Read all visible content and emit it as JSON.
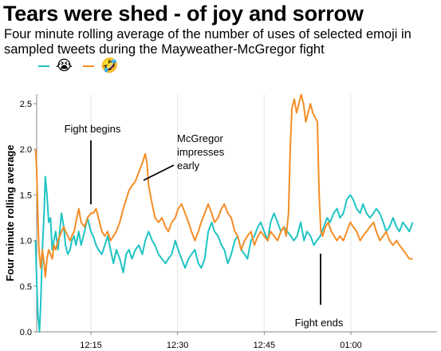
{
  "title": "Tears were shed - of joy and sorrow",
  "subtitle": "Four minute rolling average of the number of uses of selected emoji in sampled tweets during the Mayweather-McGregor fight",
  "colors": {
    "teal": "#1fc4c4",
    "orange": "#f58d25"
  },
  "legend": [
    {
      "emoji": "😭",
      "color": "#1fc4c4"
    },
    {
      "emoji": "🤣",
      "color": "#f58d25"
    }
  ],
  "chart_data": {
    "type": "line",
    "ylabel": "Four minute rolling average",
    "xlabel": "",
    "xlim_minutes_past_midnight": [
      723,
      1511
    ],
    "ylim": [
      0,
      2.6
    ],
    "x_ticks": [
      {
        "label": "12:15",
        "minutes": 735
      },
      {
        "label": "12:30",
        "minutes": 750
      },
      {
        "label": "12:45",
        "minutes": 765
      },
      {
        "label": "01:00",
        "minutes": 780
      }
    ],
    "y_ticks": [
      "0.0",
      "0.5",
      "1.0",
      "1.5",
      "2.0",
      "2.5"
    ],
    "grid": "vertical",
    "series": [
      {
        "emoji": "😭",
        "color": "#1fc4c4",
        "points": [
          [
            725.4,
            1.0
          ],
          [
            725.6,
            0.6
          ],
          [
            725.8,
            0.2
          ],
          [
            726.1,
            0.0
          ],
          [
            726.3,
            0.3
          ],
          [
            726.6,
            0.9
          ],
          [
            726.9,
            1.3
          ],
          [
            727.1,
            1.7
          ],
          [
            727.4,
            1.5
          ],
          [
            727.7,
            1.2
          ],
          [
            728.0,
            1.25
          ],
          [
            728.3,
            0.9
          ],
          [
            728.6,
            1.0
          ],
          [
            728.9,
            1.1
          ],
          [
            729.3,
            0.9
          ],
          [
            729.6,
            1.1
          ],
          [
            729.9,
            1.3
          ],
          [
            730.3,
            1.15
          ],
          [
            730.6,
            0.95
          ],
          [
            731.0,
            0.85
          ],
          [
            731.4,
            0.9
          ],
          [
            731.7,
            1.0
          ],
          [
            732.1,
            1.05
          ],
          [
            732.4,
            0.95
          ],
          [
            732.9,
            1.1
          ],
          [
            733.3,
            0.95
          ],
          [
            733.9,
            1.1
          ],
          [
            734.4,
            1.25
          ],
          [
            735.0,
            1.1
          ],
          [
            735.4,
            1.05
          ],
          [
            735.9,
            0.95
          ],
          [
            736.3,
            0.9
          ],
          [
            736.9,
            0.85
          ],
          [
            737.4,
            0.95
          ],
          [
            737.9,
            1.05
          ],
          [
            738.4,
            0.9
          ],
          [
            738.9,
            0.75
          ],
          [
            739.4,
            0.9
          ],
          [
            740.0,
            0.8
          ],
          [
            740.6,
            0.65
          ],
          [
            741.1,
            0.85
          ],
          [
            741.6,
            0.9
          ],
          [
            742.1,
            0.8
          ],
          [
            742.7,
            0.9
          ],
          [
            743.3,
            0.95
          ],
          [
            743.9,
            0.85
          ],
          [
            744.4,
            1.0
          ],
          [
            745.0,
            1.1
          ],
          [
            745.6,
            1.0
          ],
          [
            746.1,
            0.95
          ],
          [
            746.7,
            0.85
          ],
          [
            747.3,
            0.8
          ],
          [
            747.9,
            0.75
          ],
          [
            748.4,
            0.8
          ],
          [
            749.0,
            0.85
          ],
          [
            749.6,
            1.0
          ],
          [
            750.1,
            0.9
          ],
          [
            750.7,
            0.8
          ],
          [
            751.3,
            0.7
          ],
          [
            751.9,
            0.8
          ],
          [
            752.4,
            0.85
          ],
          [
            753.0,
            0.9
          ],
          [
            753.6,
            0.75
          ],
          [
            754.1,
            0.7
          ],
          [
            754.7,
            0.8
          ],
          [
            755.3,
            1.1
          ],
          [
            755.9,
            1.2
          ],
          [
            756.4,
            1.1
          ],
          [
            757.0,
            1.05
          ],
          [
            757.6,
            0.95
          ],
          [
            758.1,
            0.9
          ],
          [
            758.7,
            0.75
          ],
          [
            759.3,
            0.85
          ],
          [
            759.9,
            1.0
          ],
          [
            760.4,
            1.05
          ],
          [
            761.0,
            0.9
          ],
          [
            761.6,
            0.85
          ],
          [
            762.1,
            0.8
          ],
          [
            762.7,
            1.0
          ],
          [
            763.3,
            1.05
          ],
          [
            763.9,
            1.15
          ],
          [
            764.4,
            1.2
          ],
          [
            765.0,
            1.1
          ],
          [
            765.6,
            1.0
          ],
          [
            766.1,
            1.2
          ],
          [
            766.7,
            1.3
          ],
          [
            767.3,
            1.2
          ],
          [
            767.9,
            1.1
          ],
          [
            768.4,
            1.15
          ],
          [
            769.0,
            1.1
          ],
          [
            769.6,
            1.05
          ],
          [
            770.1,
            1.0
          ],
          [
            770.7,
            1.05
          ],
          [
            771.3,
            1.2
          ],
          [
            771.9,
            1.0
          ],
          [
            772.4,
            1.1
          ],
          [
            773.0,
            1.05
          ],
          [
            773.6,
            0.95
          ],
          [
            774.1,
            1.0
          ],
          [
            774.7,
            1.05
          ],
          [
            775.3,
            1.15
          ],
          [
            775.9,
            1.25
          ],
          [
            776.4,
            1.2
          ],
          [
            777.0,
            1.3
          ],
          [
            777.6,
            1.35
          ],
          [
            778.1,
            1.25
          ],
          [
            778.7,
            1.3
          ],
          [
            779.3,
            1.45
          ],
          [
            779.9,
            1.5
          ],
          [
            780.4,
            1.45
          ],
          [
            781.0,
            1.35
          ],
          [
            781.6,
            1.3
          ],
          [
            782.1,
            1.4
          ],
          [
            782.7,
            1.3
          ],
          [
            783.3,
            1.25
          ],
          [
            783.9,
            1.3
          ],
          [
            784.4,
            1.35
          ],
          [
            785.0,
            1.3
          ],
          [
            785.6,
            1.2
          ],
          [
            786.1,
            1.1
          ],
          [
            786.7,
            1.15
          ],
          [
            787.3,
            1.25
          ],
          [
            787.9,
            1.15
          ],
          [
            788.4,
            1.1
          ],
          [
            789.0,
            1.2
          ],
          [
            789.6,
            1.15
          ],
          [
            790.1,
            1.1
          ],
          [
            790.7,
            1.2
          ]
        ]
      },
      {
        "emoji": "🤣",
        "color": "#f58d25",
        "points": [
          [
            725.4,
            2.0
          ],
          [
            725.6,
            1.8
          ],
          [
            725.8,
            1.3
          ],
          [
            726.0,
            0.9
          ],
          [
            726.3,
            0.7
          ],
          [
            726.6,
            0.9
          ],
          [
            726.9,
            0.75
          ],
          [
            727.1,
            0.6
          ],
          [
            727.4,
            0.8
          ],
          [
            727.7,
            0.9
          ],
          [
            728.0,
            0.85
          ],
          [
            728.3,
            0.8
          ],
          [
            728.6,
            0.95
          ],
          [
            728.9,
            0.9
          ],
          [
            729.3,
            1.0
          ],
          [
            729.6,
            1.05
          ],
          [
            729.9,
            1.1
          ],
          [
            730.3,
            1.15
          ],
          [
            730.6,
            1.1
          ],
          [
            731.0,
            1.05
          ],
          [
            731.4,
            1.0
          ],
          [
            731.7,
            1.05
          ],
          [
            732.1,
            1.1
          ],
          [
            732.4,
            1.2
          ],
          [
            732.9,
            1.35
          ],
          [
            733.3,
            1.2
          ],
          [
            733.9,
            1.15
          ],
          [
            734.4,
            1.25
          ],
          [
            735.0,
            1.3
          ],
          [
            735.4,
            1.3
          ],
          [
            735.9,
            1.35
          ],
          [
            736.3,
            1.25
          ],
          [
            736.9,
            1.1
          ],
          [
            737.4,
            1.05
          ],
          [
            737.9,
            1.1
          ],
          [
            738.4,
            1.0
          ],
          [
            738.9,
            1.05
          ],
          [
            739.4,
            1.1
          ],
          [
            740.0,
            1.2
          ],
          [
            740.6,
            1.35
          ],
          [
            741.1,
            1.45
          ],
          [
            741.6,
            1.55
          ],
          [
            742.1,
            1.6
          ],
          [
            742.7,
            1.65
          ],
          [
            743.3,
            1.75
          ],
          [
            743.9,
            1.85
          ],
          [
            744.4,
            1.95
          ],
          [
            744.7,
            1.85
          ],
          [
            745.0,
            1.6
          ],
          [
            745.6,
            1.4
          ],
          [
            746.1,
            1.25
          ],
          [
            746.7,
            1.2
          ],
          [
            747.3,
            1.25
          ],
          [
            747.9,
            1.15
          ],
          [
            748.4,
            1.1
          ],
          [
            749.0,
            1.2
          ],
          [
            749.6,
            1.25
          ],
          [
            750.1,
            1.35
          ],
          [
            750.7,
            1.4
          ],
          [
            751.3,
            1.3
          ],
          [
            751.9,
            1.2
          ],
          [
            752.4,
            1.1
          ],
          [
            753.0,
            1.0
          ],
          [
            753.6,
            1.1
          ],
          [
            754.1,
            1.2
          ],
          [
            754.7,
            1.3
          ],
          [
            755.3,
            1.4
          ],
          [
            755.9,
            1.3
          ],
          [
            756.4,
            1.2
          ],
          [
            757.0,
            1.25
          ],
          [
            757.6,
            1.35
          ],
          [
            758.1,
            1.4
          ],
          [
            758.7,
            1.3
          ],
          [
            759.3,
            1.25
          ],
          [
            759.9,
            1.1
          ],
          [
            760.4,
            1.05
          ],
          [
            761.0,
            0.9
          ],
          [
            761.6,
            1.0
          ],
          [
            762.1,
            1.05
          ],
          [
            762.7,
            1.1
          ],
          [
            763.3,
            0.95
          ],
          [
            763.9,
            1.05
          ],
          [
            764.4,
            1.1
          ],
          [
            765.0,
            1.05
          ],
          [
            765.6,
            1.0
          ],
          [
            766.1,
            1.1
          ],
          [
            766.7,
            1.05
          ],
          [
            767.3,
            1.0
          ],
          [
            767.9,
            1.1
          ],
          [
            768.4,
            1.15
          ],
          [
            768.8,
            1.05
          ],
          [
            769.2,
            1.3
          ],
          [
            769.5,
            2.0
          ],
          [
            769.8,
            2.45
          ],
          [
            770.2,
            2.55
          ],
          [
            770.6,
            2.4
          ],
          [
            771.0,
            2.5
          ],
          [
            771.4,
            2.6
          ],
          [
            771.8,
            2.5
          ],
          [
            772.2,
            2.3
          ],
          [
            772.6,
            2.4
          ],
          [
            773.0,
            2.5
          ],
          [
            773.4,
            2.4
          ],
          [
            773.8,
            2.35
          ],
          [
            774.2,
            2.3
          ],
          [
            774.5,
            1.5
          ],
          [
            774.8,
            1.1
          ],
          [
            775.1,
            1.05
          ],
          [
            775.6,
            1.15
          ],
          [
            776.1,
            1.2
          ],
          [
            776.6,
            1.1
          ],
          [
            777.1,
            1.05
          ],
          [
            777.6,
            1.0
          ],
          [
            778.1,
            1.05
          ],
          [
            778.7,
            1.0
          ],
          [
            779.3,
            1.1
          ],
          [
            779.9,
            1.2
          ],
          [
            780.4,
            1.15
          ],
          [
            781.0,
            1.1
          ],
          [
            781.6,
            1.0
          ],
          [
            782.1,
            1.05
          ],
          [
            782.7,
            1.1
          ],
          [
            783.3,
            1.15
          ],
          [
            783.9,
            1.2
          ],
          [
            784.4,
            1.1
          ],
          [
            785.0,
            1.0
          ],
          [
            785.6,
            1.05
          ],
          [
            786.1,
            1.1
          ],
          [
            786.7,
            1.0
          ],
          [
            787.3,
            0.95
          ],
          [
            787.9,
            1.0
          ],
          [
            788.4,
            0.95
          ],
          [
            789.0,
            0.9
          ],
          [
            789.6,
            0.85
          ],
          [
            790.1,
            0.8
          ],
          [
            790.7,
            0.8
          ]
        ]
      }
    ],
    "annotations": [
      {
        "text_lines": [
          "Fight begins"
        ]
      },
      {
        "text_lines": [
          "McGregor",
          "impresses",
          "early"
        ]
      },
      {
        "text_lines": [
          "Fight ends"
        ]
      }
    ]
  }
}
